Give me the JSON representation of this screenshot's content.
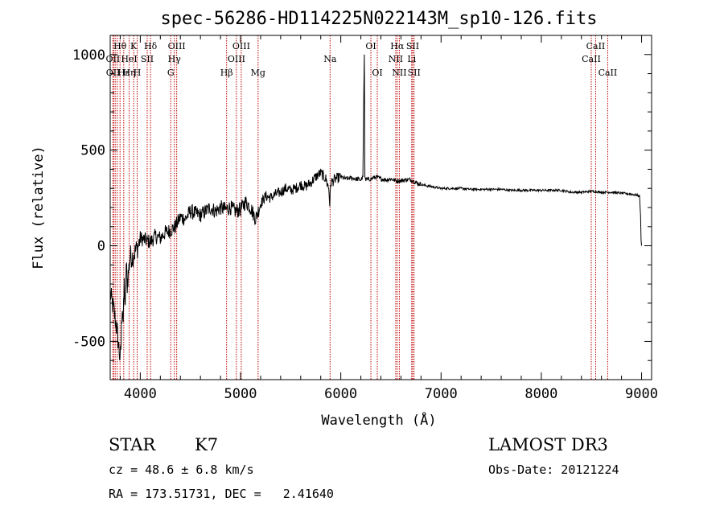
{
  "chart_data": {
    "type": "line",
    "title": "spec-56286-HD114225N022143M_sp10-126.fits",
    "xlabel": "Wavelength (Å)",
    "ylabel": "Flux (relative)",
    "xlim": [
      3700,
      9100
    ],
    "ylim": [
      -700,
      1100
    ],
    "x_ticks": [
      4000,
      5000,
      6000,
      7000,
      8000,
      9000
    ],
    "y_ticks": [
      -500,
      0,
      500,
      1000
    ],
    "grid": false,
    "series": [
      {
        "x": [
          3700,
          3740,
          3770,
          3790,
          3800,
          3810,
          3820,
          3830,
          3840,
          3850,
          3860,
          3870,
          3880,
          3890,
          3900,
          3920,
          3940,
          3960,
          3980,
          4000,
          4050,
          4100,
          4150,
          4200,
          4250,
          4300,
          4350,
          4400,
          4450,
          4500,
          4550,
          4600,
          4650,
          4700,
          4750,
          4800,
          4850,
          4900,
          4950,
          5000,
          5050,
          5100,
          5150,
          5200,
          5250,
          5300,
          5350,
          5400,
          5450,
          5500,
          5550,
          5600,
          5650,
          5700,
          5750,
          5800,
          5850,
          5880,
          5890,
          5900,
          5950,
          6000,
          6050,
          6100,
          6150,
          6200,
          6220,
          6230,
          6235,
          6240,
          6250,
          6300,
          6350,
          6400,
          6450,
          6500,
          6550,
          6600,
          6650,
          6700,
          6750,
          6800,
          6900,
          7000,
          7100,
          7200,
          7300,
          7400,
          7500,
          7600,
          7700,
          7800,
          7900,
          8000,
          8100,
          8200,
          8300,
          8400,
          8500,
          8600,
          8700,
          8800,
          8900,
          8950,
          8980,
          8990,
          8995,
          9000
        ],
        "y": [
          -250,
          -350,
          -450,
          -550,
          -600,
          -500,
          -300,
          -400,
          -200,
          -350,
          -100,
          -200,
          -150,
          -100,
          -50,
          -60,
          -40,
          -20,
          0,
          40,
          30,
          20,
          50,
          40,
          70,
          80,
          100,
          150,
          140,
          180,
          170,
          160,
          180,
          200,
          180,
          200,
          190,
          200,
          180,
          190,
          230,
          200,
          140,
          220,
          260,
          250,
          270,
          280,
          300,
          290,
          300,
          320,
          310,
          330,
          360,
          380,
          350,
          300,
          220,
          330,
          350,
          360,
          350,
          355,
          350,
          345,
          360,
          820,
          1000,
          360,
          345,
          350,
          360,
          350,
          345,
          350,
          340,
          340,
          345,
          345,
          330,
          320,
          310,
          300,
          300,
          300,
          295,
          295,
          295,
          295,
          290,
          290,
          290,
          290,
          290,
          290,
          280,
          280,
          285,
          280,
          280,
          275,
          270,
          265,
          260,
          150,
          30,
          0
        ]
      }
    ]
  },
  "line_labels": [
    {
      "text": "Hθ",
      "x": 3798,
      "row": 0
    },
    {
      "text": "OII",
      "x": 3727,
      "row": 1
    },
    {
      "text": "OII",
      "x": 3729,
      "row": 2
    },
    {
      "text": "Hε",
      "x": 3835,
      "row": 2
    },
    {
      "text": "Hη",
      "x": 3889,
      "row": 2
    },
    {
      "text": "HeI",
      "x": 3889,
      "row": 1
    },
    {
      "text": "K",
      "x": 3934,
      "row": 0
    },
    {
      "text": "H",
      "x": 3969,
      "row": 2
    },
    {
      "text": "SII",
      "x": 4069,
      "row": 1
    },
    {
      "text": "Hδ",
      "x": 4102,
      "row": 0
    },
    {
      "text": "OIII",
      "x": 4363,
      "row": 0
    },
    {
      "text": "Hγ",
      "x": 4340,
      "row": 1
    },
    {
      "text": "G",
      "x": 4304,
      "row": 2
    },
    {
      "text": "Hβ",
      "x": 4861,
      "row": 2
    },
    {
      "text": "OIII",
      "x": 5007,
      "row": 0
    },
    {
      "text": "OIII",
      "x": 4959,
      "row": 1
    },
    {
      "text": "Mg",
      "x": 5175,
      "row": 2
    },
    {
      "text": "Na",
      "x": 5893,
      "row": 1
    },
    {
      "text": "OI",
      "x": 6300,
      "row": 0
    },
    {
      "text": "OI",
      "x": 6364,
      "row": 2
    },
    {
      "text": "Hα",
      "x": 6563,
      "row": 0
    },
    {
      "text": "NII",
      "x": 6548,
      "row": 1
    },
    {
      "text": "NII",
      "x": 6584,
      "row": 2
    },
    {
      "text": "SII",
      "x": 6717,
      "row": 0
    },
    {
      "text": "Li",
      "x": 6707,
      "row": 1
    },
    {
      "text": "SII",
      "x": 6731,
      "row": 2
    },
    {
      "text": "CaII",
      "x": 8542,
      "row": 0
    },
    {
      "text": "CaII",
      "x": 8498,
      "row": 1
    },
    {
      "text": "CaII",
      "x": 8662,
      "row": 2
    }
  ],
  "line_positions": [
    3727,
    3734,
    3750,
    3770,
    3798,
    3835,
    3889,
    3934,
    3969,
    4069,
    4102,
    4304,
    4340,
    4363,
    4861,
    4959,
    5007,
    5175,
    5893,
    6300,
    6364,
    6548,
    6563,
    6584,
    6707,
    6717,
    6731,
    8498,
    8542,
    8662
  ],
  "line_color": "#c00000",
  "info": {
    "class": "STAR",
    "subclass": "K7",
    "survey": "LAMOST DR3",
    "cz": "cz = 48.6 ± 6.8 km/s",
    "obs_date": "Obs-Date: 20121224",
    "radec": "RA = 173.51731, DEC =   2.41640"
  }
}
